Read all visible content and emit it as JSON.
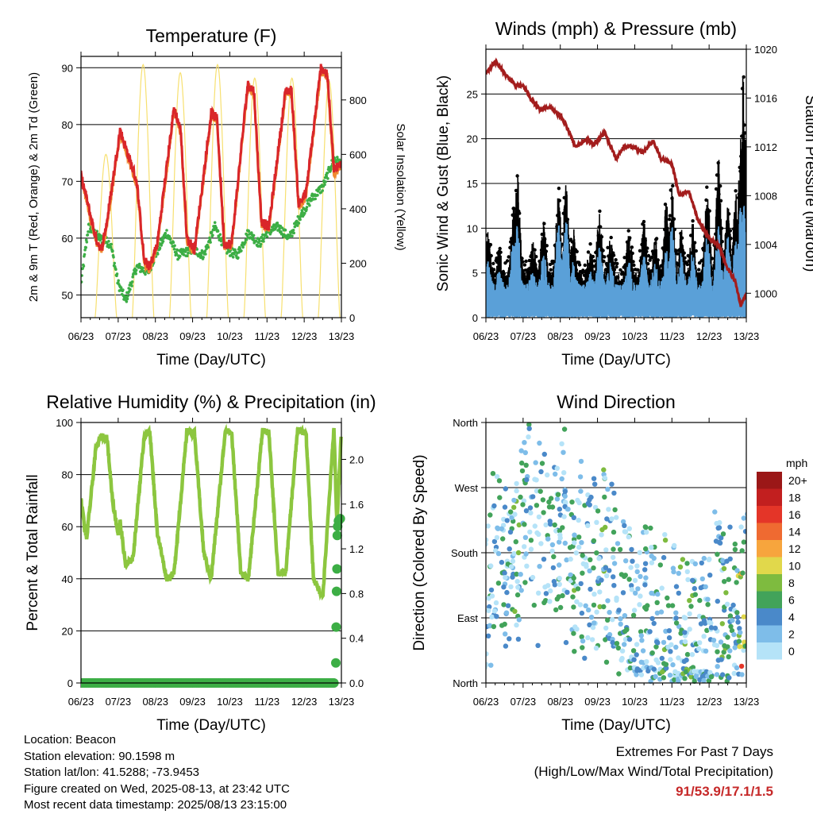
{
  "colors": {
    "temp2m": "#d9262a",
    "temp9m": "#f08a30",
    "dewpoint": "#3cae45",
    "solar": "#f7e070",
    "wind": "#5aa0d8",
    "gust": "#000000",
    "pressure": "#a31d1d",
    "rh": "#8cc63f",
    "precip": "#3cae45",
    "extremes": "#c62828"
  },
  "time_ticks": [
    "06/23",
    "07/23",
    "08/23",
    "09/23",
    "10/23",
    "11/23",
    "12/23",
    "13/23"
  ],
  "info": {
    "location": "Location: Beacon",
    "elevation": "Station elevation: 90.1598 m",
    "latlon": "Station lat/lon: 41.5288; -73.9453",
    "created": "Figure created on Wed, 2025-08-13, at 23:42 UTC",
    "recent": "Most recent data timestamp: 2025/08/13 23:15:00"
  },
  "extremes": {
    "title": "Extremes For Past 7 Days",
    "subtitle": "(High/Low/Max Wind/Total Precipitation)",
    "values": "91/53.9/17.1/1.5"
  },
  "chart_data": [
    {
      "type": "line",
      "title": "Temperature (F)",
      "xlabel": "Time (Day/UTC)",
      "ylabel": "2m & 9m T (Red, Orange) & 2m Td (Green)",
      "y2label": "Solar Insolation (Yellow)",
      "x_ticks": [
        "06/23",
        "07/23",
        "08/23",
        "09/23",
        "10/23",
        "11/23",
        "12/23",
        "13/23"
      ],
      "ylim": [
        46,
        92
      ],
      "y_ticks": [
        50,
        60,
        70,
        80,
        90
      ],
      "y2lim": [
        0,
        960
      ],
      "y2_ticks": [
        0,
        200,
        400,
        600,
        800
      ],
      "series": [
        {
          "key": "t2m",
          "x_days": [
            0,
            0.15,
            0.4,
            0.55,
            0.7,
            1.05,
            1.5,
            1.7,
            1.85,
            2.05,
            2.5,
            2.68,
            2.85,
            3.05,
            3.5,
            3.66,
            3.85,
            4.05,
            4.48,
            4.65,
            4.85,
            5.05,
            5.5,
            5.66,
            5.85,
            6.05,
            6.45,
            6.62,
            6.8,
            7.0
          ],
          "values": [
            71,
            67,
            60,
            58,
            63,
            79,
            70,
            56,
            55,
            59,
            83,
            79,
            60,
            58,
            82,
            81,
            59,
            59,
            87,
            86,
            63,
            62,
            86,
            86,
            66,
            68,
            90,
            89,
            72,
            73
          ]
        },
        {
          "key": "td2m",
          "x_days": [
            0,
            0.2,
            0.5,
            0.8,
            1.0,
            1.2,
            1.5,
            1.8,
            2.0,
            2.3,
            2.6,
            3.0,
            3.3,
            3.6,
            3.9,
            4.2,
            4.5,
            4.8,
            5.0,
            5.3,
            5.6,
            5.9,
            6.2,
            6.5,
            6.8,
            7.0
          ],
          "values": [
            52,
            62,
            60,
            59,
            52,
            49,
            55,
            54,
            57,
            61,
            57,
            58,
            57,
            62,
            58,
            57,
            61,
            59,
            61,
            62,
            60,
            64,
            67,
            69,
            74,
            73
          ]
        }
      ],
      "solar": {
        "day_starts": [
          0.38,
          1.38,
          2.38,
          3.38,
          4.38,
          5.38,
          6.38
        ],
        "peaks": [
          600,
          930,
          900,
          930,
          880,
          880,
          870
        ]
      }
    },
    {
      "type": "line",
      "title": "Winds (mph) & Pressure (mb)",
      "xlabel": "Time (Day/UTC)",
      "ylabel": "Sonic Wind & Gust (Blue, Black)",
      "y2label": "Station Pressure (Maroon)",
      "x_ticks": [
        "06/23",
        "07/23",
        "08/23",
        "09/23",
        "10/23",
        "11/23",
        "12/23",
        "13/23"
      ],
      "ylim": [
        0,
        30
      ],
      "y_ticks": [
        0,
        5,
        10,
        15,
        20,
        25
      ],
      "y2lim": [
        998,
        1020
      ],
      "y2_ticks": [
        1000,
        1004,
        1008,
        1012,
        1016,
        1020
      ],
      "pressure": {
        "x_days": [
          0,
          0.25,
          0.5,
          0.8,
          1.0,
          1.2,
          1.45,
          1.7,
          2.0,
          2.2,
          2.4,
          2.7,
          2.9,
          3.2,
          3.5,
          3.7,
          4.0,
          4.2,
          4.5,
          4.7,
          5.0,
          5.2,
          5.45,
          5.7,
          6.0,
          6.25,
          6.5,
          6.7,
          6.85,
          7.0
        ],
        "values": [
          1018,
          1019,
          1018,
          1017,
          1017,
          1016,
          1015,
          1015.3,
          1014.5,
          1013.5,
          1012,
          1012.6,
          1012.2,
          1013.2,
          1011,
          1012,
          1012,
          1011.5,
          1012.5,
          1011,
          1010.6,
          1008,
          1008.4,
          1006,
          1004.5,
          1004,
          1002,
          1001,
          999,
          1000
        ]
      },
      "peaks": {
        "days": [
          0.05,
          0.35,
          0.75,
          0.85,
          1.25,
          1.55,
          1.95,
          2.15,
          2.35,
          2.8,
          3.05,
          3.35,
          3.85,
          4.25,
          4.55,
          4.85,
          5.0,
          5.25,
          5.55,
          5.95,
          6.25,
          6.5,
          6.72,
          6.85,
          6.92
        ],
        "gust": [
          10,
          8,
          13,
          16,
          9,
          11,
          14,
          15,
          10,
          8,
          12,
          9,
          10,
          11,
          9,
          13,
          15,
          10,
          11,
          15,
          18,
          13,
          14,
          20,
          28
        ],
        "wind": [
          6,
          5,
          9,
          10,
          5,
          7,
          10,
          11,
          6,
          5,
          8,
          6,
          6,
          7,
          6,
          8,
          10,
          7,
          7,
          9,
          10,
          9,
          9,
          12,
          13
        ]
      }
    },
    {
      "type": "line",
      "title": "Relative Humidity (%) & Precipitation (in)",
      "xlabel": "Time (Day/UTC)",
      "ylabel": "Percent & Total Rainfall",
      "x_ticks": [
        "06/23",
        "07/23",
        "08/23",
        "09/23",
        "10/23",
        "11/23",
        "12/23",
        "13/23"
      ],
      "ylim": [
        0,
        100
      ],
      "y_ticks": [
        0,
        20,
        40,
        60,
        80,
        100
      ],
      "y2lim": [
        0,
        2.33
      ],
      "y2_ticks": [
        "0.0",
        "0.4",
        "0.8",
        "1.2",
        "1.6",
        "2.0"
      ],
      "rh": {
        "x_days": [
          0,
          0.15,
          0.4,
          0.55,
          0.7,
          0.85,
          1.0,
          1.05,
          1.2,
          1.4,
          1.7,
          1.85,
          2.05,
          2.3,
          2.5,
          2.85,
          3.05,
          3.3,
          3.5,
          3.88,
          4.05,
          4.3,
          4.5,
          4.88,
          5.05,
          5.3,
          5.5,
          5.82,
          6.05,
          6.25,
          6.5,
          6.8,
          6.88,
          7.0
        ],
        "values": [
          70,
          55,
          90,
          95,
          94,
          70,
          57,
          62,
          45,
          48,
          95,
          97,
          58,
          40,
          42,
          97,
          96,
          50,
          40,
          97,
          96,
          42,
          40,
          97,
          96,
          42,
          42,
          97,
          96,
          40,
          33,
          98,
          60,
          97
        ]
      },
      "precip": {
        "x_days": [
          6.85,
          6.86,
          6.87,
          6.88,
          6.89,
          6.9,
          6.92,
          6.97
        ],
        "values": [
          0.18,
          0.5,
          0.82,
          1.02,
          1.32,
          1.4,
          1.45,
          1.47
        ]
      }
    },
    {
      "type": "scatter",
      "title": "Wind Direction",
      "xlabel": "Time (Day/UTC)",
      "ylabel": "Direction (Colored By Speed)",
      "x_ticks": [
        "06/23",
        "07/23",
        "08/23",
        "09/23",
        "10/23",
        "11/23",
        "12/23",
        "13/23"
      ],
      "y_ticks": [
        "North",
        "East",
        "South",
        "West",
        "North"
      ],
      "ylim": [
        0,
        360
      ],
      "legend_title": "mph",
      "legend_labels": [
        "0",
        "2",
        "4",
        "6",
        "8",
        "10",
        "12",
        "14",
        "16",
        "18",
        "20+"
      ],
      "legend_colors": [
        "#b5e3f8",
        "#7ebde9",
        "#4a89c9",
        "#42a35a",
        "#7ebb3f",
        "#e1d84b",
        "#f7a53d",
        "#ef6a31",
        "#e43528",
        "#c21f1f",
        "#9b1717"
      ],
      "gusty_days": [
        0.82,
        2.3,
        3.1,
        4.8,
        5.3,
        5.5,
        6.4,
        6.88,
        6.93
      ]
    }
  ]
}
